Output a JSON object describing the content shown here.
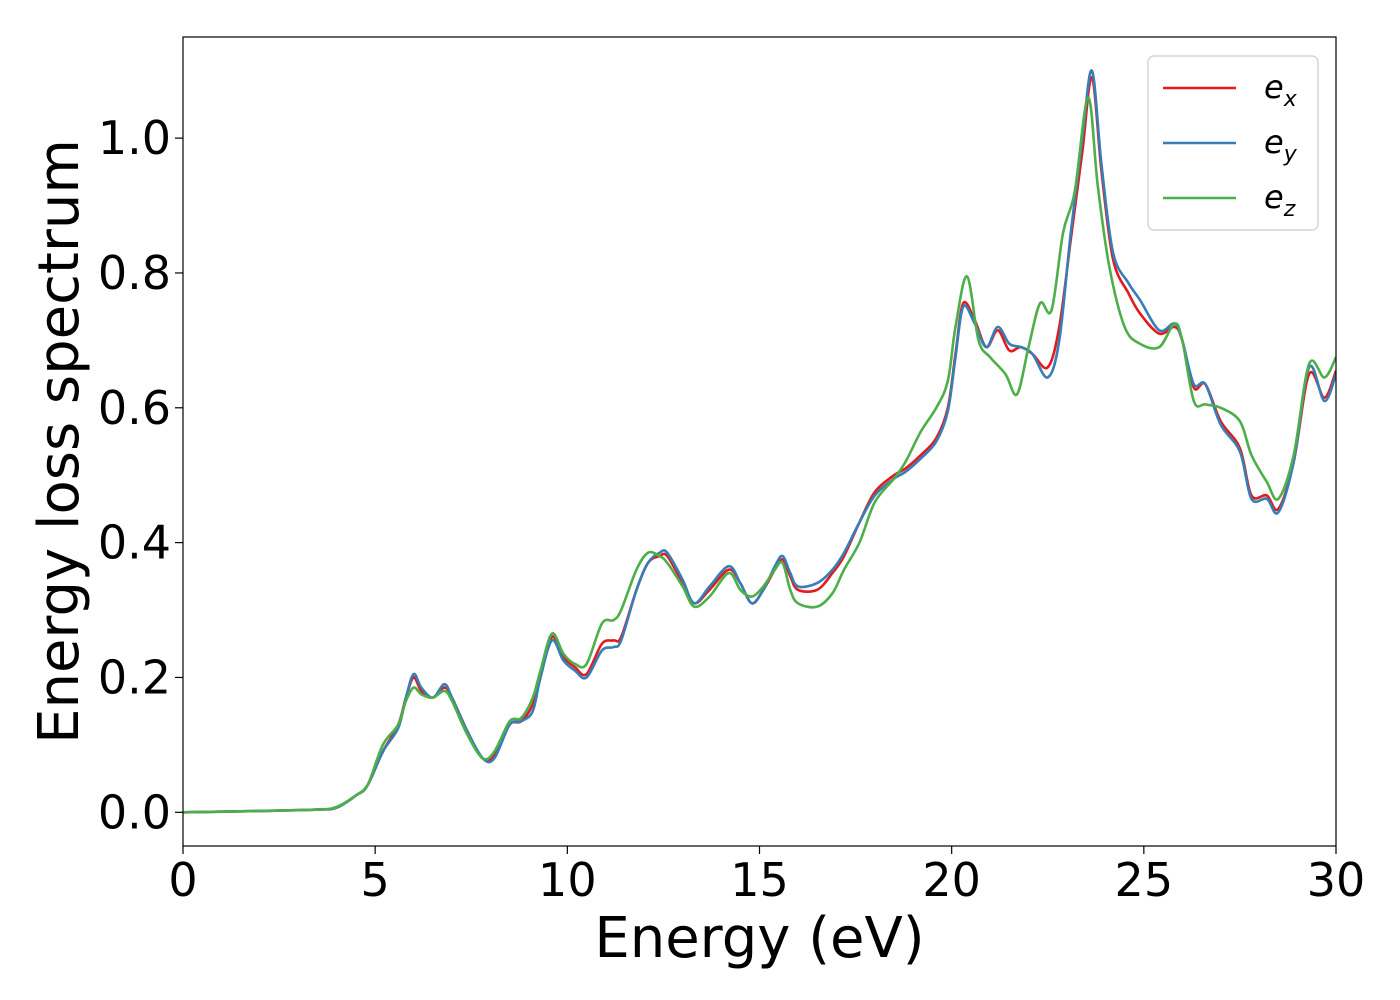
{
  "chart_data": {
    "type": "line",
    "title": "",
    "xlabel": "Energy (eV)",
    "ylabel": "Energy loss spectrum",
    "xlim": [
      0,
      30
    ],
    "ylim": [
      -0.05,
      1.15
    ],
    "xticks": [
      0,
      5,
      10,
      15,
      20,
      25,
      30
    ],
    "xtick_labels": [
      "0",
      "5",
      "10",
      "15",
      "20",
      "25",
      "30"
    ],
    "yticks": [
      0.0,
      0.2,
      0.4,
      0.6,
      0.8,
      1.0
    ],
    "ytick_labels": [
      "0.0",
      "0.2",
      "0.4",
      "0.6",
      "0.8",
      "1.0"
    ],
    "grid": false,
    "legend_position": "top-right",
    "series": [
      {
        "name": "e_x",
        "label_main": "e",
        "label_sub": "x",
        "color": "#e41a1c",
        "points": [
          [
            0,
            0
          ],
          [
            2,
            0.002
          ],
          [
            3.5,
            0.004
          ],
          [
            4,
            0.007
          ],
          [
            4.5,
            0.025
          ],
          [
            4.8,
            0.04
          ],
          [
            5.2,
            0.09
          ],
          [
            5.6,
            0.13
          ],
          [
            5.8,
            0.17
          ],
          [
            6.0,
            0.2
          ],
          [
            6.2,
            0.18
          ],
          [
            6.5,
            0.17
          ],
          [
            6.8,
            0.185
          ],
          [
            7.0,
            0.17
          ],
          [
            7.4,
            0.12
          ],
          [
            7.8,
            0.08
          ],
          [
            8.1,
            0.085
          ],
          [
            8.5,
            0.13
          ],
          [
            8.8,
            0.135
          ],
          [
            9.1,
            0.16
          ],
          [
            9.3,
            0.2
          ],
          [
            9.6,
            0.26
          ],
          [
            9.9,
            0.23
          ],
          [
            10.2,
            0.215
          ],
          [
            10.5,
            0.205
          ],
          [
            10.9,
            0.25
          ],
          [
            11.2,
            0.255
          ],
          [
            11.4,
            0.26
          ],
          [
            11.8,
            0.33
          ],
          [
            12.1,
            0.37
          ],
          [
            12.4,
            0.38
          ],
          [
            12.6,
            0.38
          ],
          [
            13.0,
            0.34
          ],
          [
            13.3,
            0.31
          ],
          [
            13.7,
            0.33
          ],
          [
            14.2,
            0.36
          ],
          [
            14.5,
            0.34
          ],
          [
            14.8,
            0.31
          ],
          [
            15.1,
            0.33
          ],
          [
            15.4,
            0.36
          ],
          [
            15.6,
            0.375
          ],
          [
            15.8,
            0.35
          ],
          [
            16.0,
            0.33
          ],
          [
            16.5,
            0.33
          ],
          [
            16.9,
            0.355
          ],
          [
            17.2,
            0.38
          ],
          [
            17.6,
            0.43
          ],
          [
            18.0,
            0.475
          ],
          [
            18.5,
            0.5
          ],
          [
            18.8,
            0.51
          ],
          [
            19.2,
            0.53
          ],
          [
            19.6,
            0.555
          ],
          [
            19.9,
            0.6
          ],
          [
            20.1,
            0.68
          ],
          [
            20.3,
            0.755
          ],
          [
            20.6,
            0.73
          ],
          [
            20.9,
            0.69
          ],
          [
            21.2,
            0.715
          ],
          [
            21.5,
            0.685
          ],
          [
            21.8,
            0.69
          ],
          [
            22.1,
            0.68
          ],
          [
            22.5,
            0.66
          ],
          [
            22.8,
            0.72
          ],
          [
            23.1,
            0.85
          ],
          [
            23.4,
            0.98
          ],
          [
            23.65,
            1.09
          ],
          [
            23.9,
            0.95
          ],
          [
            24.2,
            0.82
          ],
          [
            24.6,
            0.77
          ],
          [
            24.9,
            0.74
          ],
          [
            25.4,
            0.71
          ],
          [
            25.8,
            0.72
          ],
          [
            26.0,
            0.7
          ],
          [
            26.3,
            0.63
          ],
          [
            26.6,
            0.635
          ],
          [
            27.0,
            0.58
          ],
          [
            27.5,
            0.54
          ],
          [
            27.8,
            0.47
          ],
          [
            28.2,
            0.47
          ],
          [
            28.5,
            0.45
          ],
          [
            28.9,
            0.52
          ],
          [
            29.3,
            0.65
          ],
          [
            29.7,
            0.615
          ],
          [
            30,
            0.655
          ]
        ]
      },
      {
        "name": "e_y",
        "label_main": "e",
        "label_sub": "y",
        "color": "#377eb8",
        "points": [
          [
            0,
            0
          ],
          [
            2,
            0.002
          ],
          [
            3.5,
            0.004
          ],
          [
            4,
            0.007
          ],
          [
            4.5,
            0.025
          ],
          [
            4.8,
            0.04
          ],
          [
            5.2,
            0.09
          ],
          [
            5.6,
            0.125
          ],
          [
            5.8,
            0.17
          ],
          [
            6.0,
            0.205
          ],
          [
            6.2,
            0.185
          ],
          [
            6.5,
            0.17
          ],
          [
            6.8,
            0.19
          ],
          [
            7.0,
            0.17
          ],
          [
            7.4,
            0.12
          ],
          [
            7.8,
            0.08
          ],
          [
            8.1,
            0.08
          ],
          [
            8.5,
            0.13
          ],
          [
            8.8,
            0.135
          ],
          [
            9.1,
            0.15
          ],
          [
            9.3,
            0.2
          ],
          [
            9.6,
            0.255
          ],
          [
            9.9,
            0.225
          ],
          [
            10.2,
            0.21
          ],
          [
            10.5,
            0.2
          ],
          [
            10.9,
            0.24
          ],
          [
            11.2,
            0.245
          ],
          [
            11.4,
            0.255
          ],
          [
            11.8,
            0.33
          ],
          [
            12.1,
            0.37
          ],
          [
            12.4,
            0.385
          ],
          [
            12.6,
            0.385
          ],
          [
            13.0,
            0.345
          ],
          [
            13.3,
            0.31
          ],
          [
            13.7,
            0.335
          ],
          [
            14.2,
            0.365
          ],
          [
            14.5,
            0.34
          ],
          [
            14.8,
            0.31
          ],
          [
            15.1,
            0.33
          ],
          [
            15.4,
            0.365
          ],
          [
            15.6,
            0.38
          ],
          [
            15.8,
            0.355
          ],
          [
            16.0,
            0.335
          ],
          [
            16.5,
            0.34
          ],
          [
            16.9,
            0.36
          ],
          [
            17.2,
            0.385
          ],
          [
            17.6,
            0.43
          ],
          [
            18.0,
            0.47
          ],
          [
            18.5,
            0.495
          ],
          [
            18.8,
            0.505
          ],
          [
            19.2,
            0.525
          ],
          [
            19.6,
            0.55
          ],
          [
            19.9,
            0.595
          ],
          [
            20.1,
            0.675
          ],
          [
            20.3,
            0.75
          ],
          [
            20.6,
            0.725
          ],
          [
            20.9,
            0.69
          ],
          [
            21.2,
            0.72
          ],
          [
            21.5,
            0.695
          ],
          [
            21.8,
            0.69
          ],
          [
            22.1,
            0.68
          ],
          [
            22.5,
            0.645
          ],
          [
            22.8,
            0.7
          ],
          [
            23.1,
            0.86
          ],
          [
            23.4,
            1.0
          ],
          [
            23.65,
            1.1
          ],
          [
            23.9,
            0.96
          ],
          [
            24.2,
            0.83
          ],
          [
            24.6,
            0.785
          ],
          [
            24.9,
            0.76
          ],
          [
            25.4,
            0.715
          ],
          [
            25.8,
            0.725
          ],
          [
            26.0,
            0.7
          ],
          [
            26.3,
            0.635
          ],
          [
            26.6,
            0.635
          ],
          [
            27.0,
            0.575
          ],
          [
            27.5,
            0.535
          ],
          [
            27.8,
            0.465
          ],
          [
            28.2,
            0.465
          ],
          [
            28.5,
            0.445
          ],
          [
            28.9,
            0.52
          ],
          [
            29.3,
            0.66
          ],
          [
            29.7,
            0.61
          ],
          [
            30,
            0.65
          ]
        ]
      },
      {
        "name": "e_z",
        "label_main": "e",
        "label_sub": "z",
        "color": "#4daf4a",
        "points": [
          [
            0,
            0
          ],
          [
            2,
            0.002
          ],
          [
            3.5,
            0.004
          ],
          [
            4,
            0.008
          ],
          [
            4.5,
            0.025
          ],
          [
            4.8,
            0.04
          ],
          [
            5.2,
            0.1
          ],
          [
            5.6,
            0.13
          ],
          [
            5.8,
            0.165
          ],
          [
            6.0,
            0.185
          ],
          [
            6.2,
            0.175
          ],
          [
            6.5,
            0.17
          ],
          [
            6.8,
            0.18
          ],
          [
            7.0,
            0.165
          ],
          [
            7.4,
            0.115
          ],
          [
            7.8,
            0.08
          ],
          [
            8.1,
            0.09
          ],
          [
            8.5,
            0.135
          ],
          [
            8.8,
            0.14
          ],
          [
            9.1,
            0.17
          ],
          [
            9.3,
            0.21
          ],
          [
            9.6,
            0.265
          ],
          [
            9.9,
            0.235
          ],
          [
            10.2,
            0.22
          ],
          [
            10.5,
            0.22
          ],
          [
            10.9,
            0.28
          ],
          [
            11.2,
            0.285
          ],
          [
            11.4,
            0.3
          ],
          [
            11.8,
            0.36
          ],
          [
            12.1,
            0.385
          ],
          [
            12.4,
            0.38
          ],
          [
            12.6,
            0.37
          ],
          [
            13.0,
            0.335
          ],
          [
            13.3,
            0.305
          ],
          [
            13.7,
            0.32
          ],
          [
            14.2,
            0.355
          ],
          [
            14.5,
            0.33
          ],
          [
            14.8,
            0.32
          ],
          [
            15.1,
            0.335
          ],
          [
            15.4,
            0.36
          ],
          [
            15.6,
            0.37
          ],
          [
            15.8,
            0.33
          ],
          [
            16.0,
            0.31
          ],
          [
            16.5,
            0.305
          ],
          [
            16.9,
            0.325
          ],
          [
            17.2,
            0.36
          ],
          [
            17.6,
            0.4
          ],
          [
            18.0,
            0.46
          ],
          [
            18.5,
            0.495
          ],
          [
            18.8,
            0.52
          ],
          [
            19.2,
            0.565
          ],
          [
            19.6,
            0.6
          ],
          [
            19.9,
            0.64
          ],
          [
            20.1,
            0.72
          ],
          [
            20.4,
            0.795
          ],
          [
            20.7,
            0.7
          ],
          [
            21.0,
            0.675
          ],
          [
            21.4,
            0.65
          ],
          [
            21.7,
            0.62
          ],
          [
            22.0,
            0.69
          ],
          [
            22.3,
            0.755
          ],
          [
            22.6,
            0.745
          ],
          [
            22.9,
            0.86
          ],
          [
            23.2,
            0.92
          ],
          [
            23.55,
            1.06
          ],
          [
            23.8,
            0.93
          ],
          [
            24.1,
            0.81
          ],
          [
            24.5,
            0.72
          ],
          [
            24.9,
            0.695
          ],
          [
            25.4,
            0.69
          ],
          [
            25.8,
            0.725
          ],
          [
            26.0,
            0.7
          ],
          [
            26.3,
            0.61
          ],
          [
            26.6,
            0.605
          ],
          [
            27.0,
            0.6
          ],
          [
            27.5,
            0.58
          ],
          [
            27.8,
            0.53
          ],
          [
            28.2,
            0.49
          ],
          [
            28.5,
            0.465
          ],
          [
            28.9,
            0.53
          ],
          [
            29.3,
            0.665
          ],
          [
            29.7,
            0.645
          ],
          [
            30,
            0.675
          ]
        ]
      }
    ]
  }
}
